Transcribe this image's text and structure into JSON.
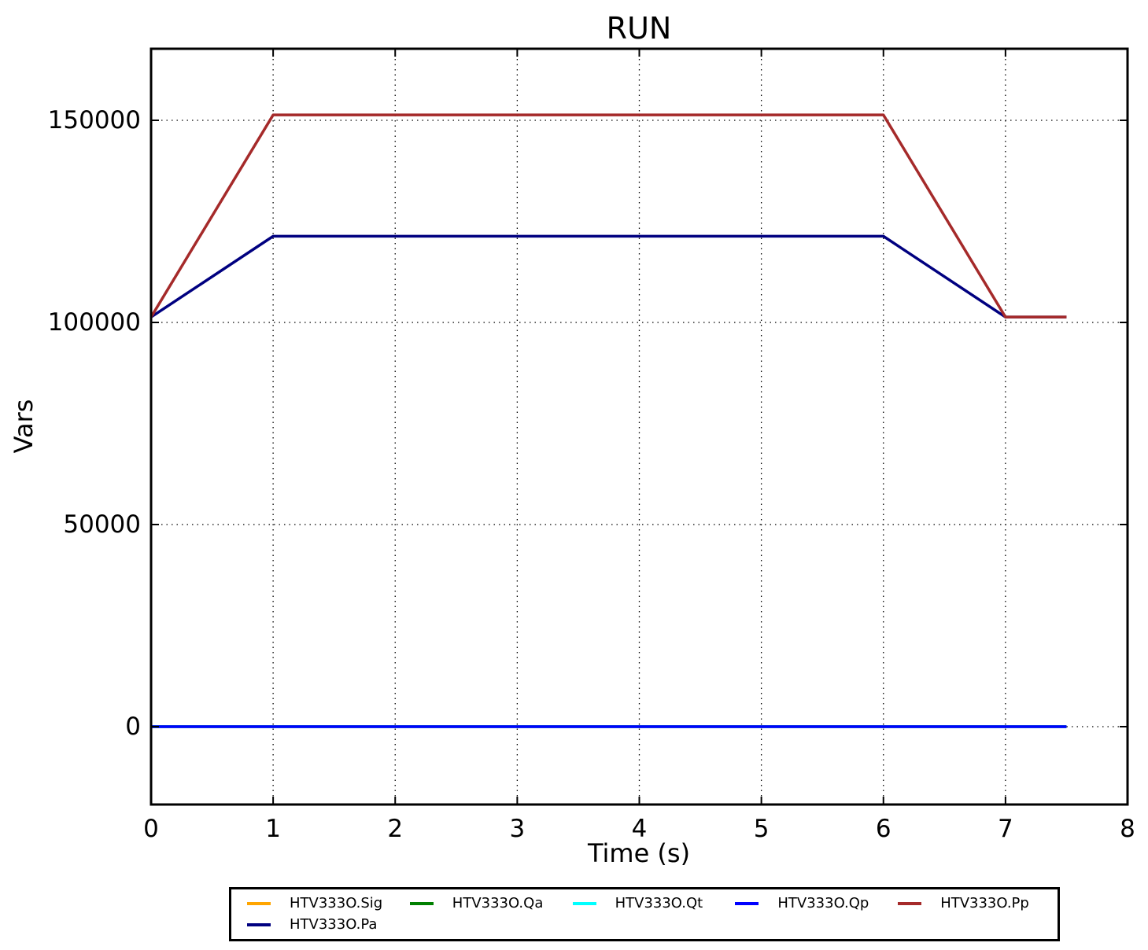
{
  "figure": {
    "background": "#ffffff",
    "frame_color": "#000000",
    "grid_color": "#000000"
  },
  "chart_data": {
    "type": "line",
    "title": "RUN",
    "xlabel": "Time (s)",
    "ylabel": "Vars",
    "xlim": [
      0,
      8
    ],
    "ylim": [
      -19260,
      167700
    ],
    "xticks": [
      0,
      1,
      2,
      3,
      4,
      5,
      6,
      7,
      8
    ],
    "yticks": [
      0,
      50000,
      100000,
      150000
    ],
    "grid": "dotted",
    "legend_position": "bottom",
    "series": [
      {
        "name": "HTV333O.Sig",
        "color": "#FFA500",
        "x": [
          0,
          7.5
        ],
        "y": [
          0,
          0
        ]
      },
      {
        "name": "HTV333O.Qa",
        "color": "#008000",
        "x": [
          0,
          7.5
        ],
        "y": [
          0,
          0
        ]
      },
      {
        "name": "HTV333O.Qt",
        "color": "#00FFFF",
        "x": [
          0,
          7.5
        ],
        "y": [
          0,
          0
        ]
      },
      {
        "name": "HTV333O.Qp",
        "color": "#0000FF",
        "x": [
          0,
          7.5
        ],
        "y": [
          0,
          0
        ]
      },
      {
        "name": "HTV333O.Pa",
        "color": "#000080",
        "x": [
          0,
          1,
          6,
          7,
          7.5
        ],
        "y": [
          101325,
          121325,
          121325,
          101325,
          101325
        ]
      },
      {
        "name": "HTV333O.Pp",
        "color": "#A52A2A",
        "x": [
          0,
          1,
          6,
          7,
          7.5
        ],
        "y": [
          101325,
          151325,
          151325,
          101325,
          101325
        ]
      }
    ],
    "legend": [
      {
        "label": "HTV333O.Sig",
        "color": "#FFA500"
      },
      {
        "label": "HTV333O.Qa",
        "color": "#008000"
      },
      {
        "label": "HTV333O.Qt",
        "color": "#00FFFF"
      },
      {
        "label": "HTV333O.Qp",
        "color": "#0000FF"
      },
      {
        "label": "HTV333O.Pp",
        "color": "#A52A2A"
      },
      {
        "label": "HTV333O.Pa",
        "color": "#000080"
      }
    ]
  }
}
